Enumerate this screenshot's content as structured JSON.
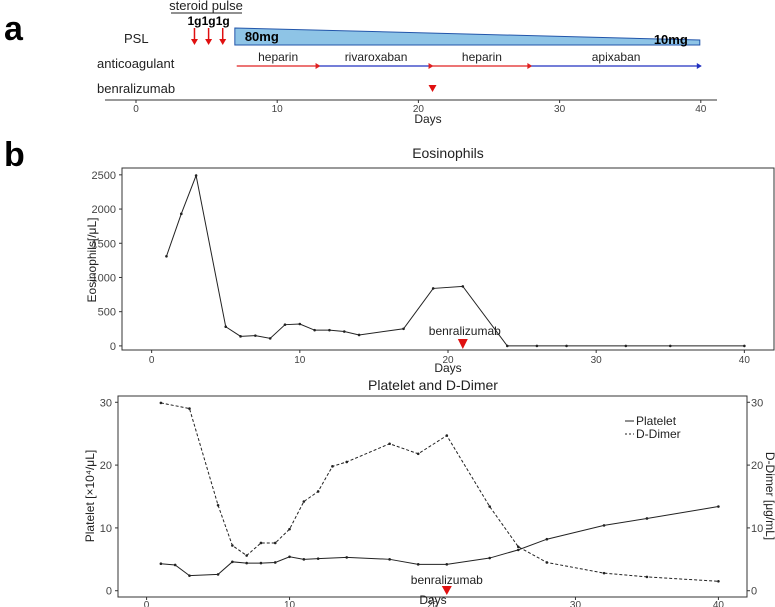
{
  "panels": {
    "a": "a",
    "b": "b"
  },
  "timeline": {
    "steroid_pulse_label": "steroid pulse",
    "pulse_doses": [
      "1g",
      "1g",
      "1g"
    ],
    "pulse_days": [
      4,
      5,
      6
    ],
    "rows": {
      "psl": "PSL",
      "anticoagulant": "anticoagulant",
      "benralizumab": "benralizumab"
    },
    "psl": {
      "start_day": 7,
      "end_day": 40,
      "start_label": "80mg",
      "end_label": "10mg",
      "color": "#8ec4e6"
    },
    "anticoagulants": [
      {
        "name": "heparin",
        "start": 6,
        "end": 13,
        "color": "#e02020"
      },
      {
        "name": "rivaroxaban",
        "start": 13,
        "end": 21,
        "color": "#2030c0"
      },
      {
        "name": "heparin",
        "start": 21,
        "end": 28,
        "color": "#e02020"
      },
      {
        "name": "apixaban",
        "start": 28,
        "end": 40,
        "color": "#2030c0"
      }
    ],
    "benralizumab_day": 21,
    "xlabel": "Days",
    "xticks": [
      0,
      10,
      20,
      30,
      40
    ]
  },
  "chart_data": [
    {
      "type": "line",
      "title": "Eosinophils",
      "xlabel": "Days",
      "ylabel": "Eosinophils[/μL]",
      "xlim": [
        -2,
        42
      ],
      "ylim": [
        -60,
        2600
      ],
      "xticks": [
        0,
        10,
        20,
        30,
        40
      ],
      "yticks": [
        0,
        500,
        1000,
        1500,
        2000,
        2500
      ],
      "x": [
        1,
        2,
        3,
        5,
        6,
        7,
        8,
        9,
        10,
        11,
        12,
        13,
        14,
        17,
        19,
        21,
        24,
        26,
        28,
        32,
        35,
        40
      ],
      "values": [
        1310,
        1930,
        2490,
        280,
        140,
        150,
        110,
        310,
        320,
        230,
        230,
        210,
        160,
        250,
        840,
        870,
        0,
        0,
        0,
        0,
        0,
        0
      ],
      "annotation": {
        "text": "benralizumab",
        "x": 21
      }
    },
    {
      "type": "line",
      "title": "Platelet and D-Dimer",
      "xlabel": "Days",
      "ylabel": "Platelet [×10⁴/μL]",
      "ylabel_right": "D-Dimer [μg/mL]",
      "xlim": [
        -2,
        42
      ],
      "ylim": [
        -1,
        31
      ],
      "xticks": [
        0,
        10,
        20,
        30,
        40
      ],
      "yticks": [
        0,
        10,
        20,
        30
      ],
      "legend": [
        "Platelet",
        "D-Dimer"
      ],
      "legend_position": "top-right",
      "series": [
        {
          "name": "Platelet",
          "style": "solid",
          "x": [
            1,
            2,
            3,
            5,
            6,
            7,
            8,
            9,
            10,
            11,
            12,
            14,
            17,
            19,
            21,
            24,
            26,
            28,
            32,
            35,
            40
          ],
          "values": [
            4.3,
            4.1,
            2.4,
            2.6,
            4.6,
            4.4,
            4.4,
            4.5,
            5.4,
            5.0,
            5.1,
            5.3,
            5.0,
            4.2,
            4.2,
            5.2,
            6.5,
            8.2,
            10.4,
            11.5,
            13.4
          ]
        },
        {
          "name": "D-Dimer",
          "style": "dashed",
          "x": [
            1,
            3,
            5,
            6,
            7,
            8,
            9,
            10,
            11,
            12,
            13,
            14,
            17,
            19,
            21,
            24,
            26,
            28,
            32,
            35,
            40
          ],
          "values": [
            29.9,
            29.0,
            13.6,
            7.2,
            5.6,
            7.6,
            7.6,
            9.8,
            14.2,
            15.8,
            19.8,
            20.5,
            23.4,
            21.8,
            24.7,
            13.4,
            7.0,
            4.5,
            2.8,
            2.2,
            1.5
          ]
        }
      ],
      "annotation": {
        "text": "benralizumab",
        "x": 21
      }
    }
  ]
}
